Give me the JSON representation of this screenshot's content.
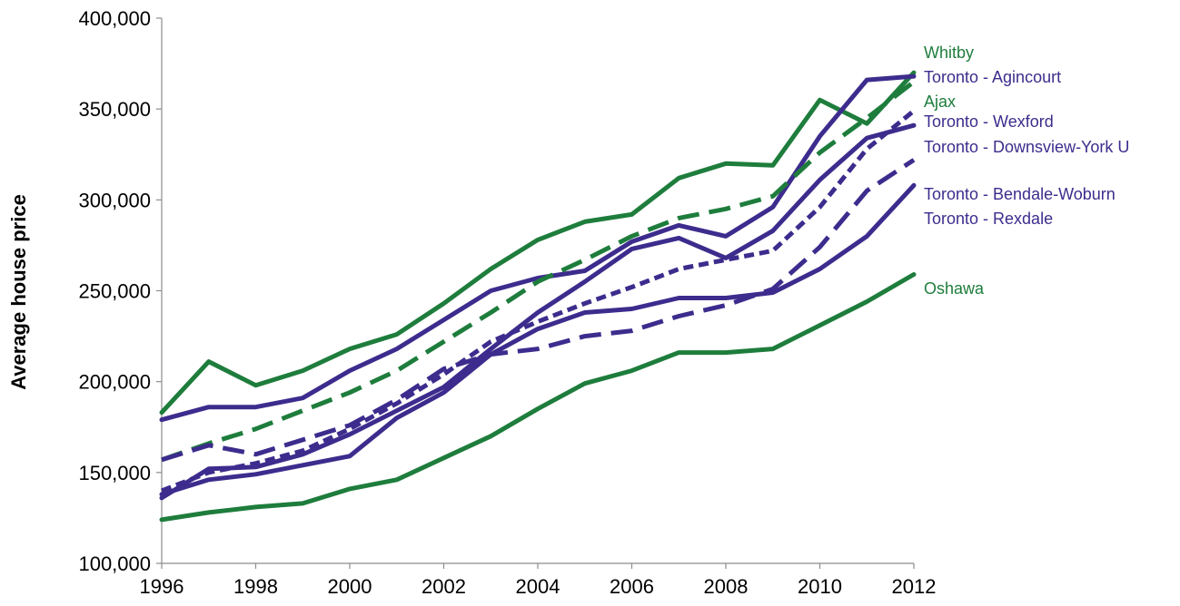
{
  "chart_data": {
    "type": "line",
    "title": "",
    "xlabel": "",
    "ylabel": "Average house price",
    "x": [
      1996,
      1997,
      1998,
      1999,
      2000,
      2001,
      2002,
      2003,
      2004,
      2005,
      2006,
      2007,
      2008,
      2009,
      2010,
      2011,
      2012
    ],
    "xticks": [
      1996,
      1998,
      2000,
      2002,
      2004,
      2006,
      2008,
      2010,
      2012
    ],
    "xtick_labels": [
      "1996",
      "1998",
      "2000",
      "2002",
      "2004",
      "2006",
      "2008",
      "2010",
      "2012"
    ],
    "xlim": [
      1996,
      2012
    ],
    "ylim": [
      100000,
      400000
    ],
    "yticks": [
      100000,
      150000,
      200000,
      250000,
      300000,
      350000,
      400000
    ],
    "ytick_labels": [
      "100,000",
      "150,000",
      "200,000",
      "250,000",
      "300,000",
      "350,000",
      "400,000"
    ],
    "grid": false,
    "legend": "labels at right end of lines",
    "colors": {
      "green": "#1E7D3C",
      "purple": "#3D2C8D"
    },
    "series": [
      {
        "name": "Whitby",
        "color": "#1E7D3C",
        "dash": "solid",
        "values": [
          183000,
          211000,
          198000,
          206000,
          218000,
          226000,
          243000,
          262000,
          278000,
          288000,
          292000,
          312000,
          320000,
          319000,
          355000,
          342000,
          370000
        ]
      },
      {
        "name": "Toronto - Agincourt",
        "color": "#3D2C8D",
        "dash": "solid",
        "values": [
          179000,
          186000,
          186000,
          191000,
          206000,
          218000,
          234000,
          250000,
          257000,
          261000,
          277000,
          286000,
          280000,
          296000,
          335000,
          366000,
          368000
        ]
      },
      {
        "name": "Ajax",
        "color": "#1E7D3C",
        "dash": "dashed",
        "values": [
          157000,
          166000,
          174000,
          184000,
          194000,
          206000,
          222000,
          238000,
          255000,
          267000,
          280000,
          290000,
          295000,
          302000,
          326000,
          345000,
          365000
        ]
      },
      {
        "name": "Toronto - Wexford",
        "color": "#3D2C8D",
        "dash": "dotted",
        "values": [
          140000,
          150000,
          155000,
          162000,
          174000,
          188000,
          204000,
          222000,
          233000,
          243000,
          252000,
          262000,
          267000,
          272000,
          296000,
          328000,
          349000
        ]
      },
      {
        "name": "Toronto - Downsview-York U",
        "color": "#3D2C8D",
        "dash": "solid",
        "values": [
          136000,
          152000,
          153000,
          160000,
          171000,
          184000,
          197000,
          218000,
          238000,
          255000,
          273000,
          279000,
          268000,
          283000,
          311000,
          334000,
          341000
        ]
      },
      {
        "name": "Toronto - Bendale-Woburn",
        "color": "#3D2C8D",
        "dash": "dashed",
        "values": [
          157000,
          165000,
          160000,
          168000,
          176000,
          190000,
          207000,
          215000,
          218000,
          225000,
          228000,
          236000,
          242000,
          251000,
          274000,
          305000,
          322000
        ]
      },
      {
        "name": "Toronto - Rexdale",
        "color": "#3D2C8D",
        "dash": "solid",
        "values": [
          138000,
          146000,
          149000,
          154000,
          159000,
          180000,
          194000,
          215000,
          229000,
          238000,
          240000,
          246000,
          246000,
          249000,
          262000,
          280000,
          308000
        ]
      },
      {
        "name": "Oshawa",
        "color": "#1E7D3C",
        "dash": "solid",
        "values": [
          124000,
          128000,
          131000,
          133000,
          141000,
          146000,
          158000,
          170000,
          185000,
          199000,
          206000,
          216000,
          216000,
          218000,
          231000,
          244000,
          259000
        ]
      }
    ],
    "legend_items": [
      {
        "label": "Whitby",
        "color": "#1E7D3C"
      },
      {
        "label": "Toronto - Agincourt",
        "color": "#3D2C8D"
      },
      {
        "label": "Ajax",
        "color": "#1E7D3C"
      },
      {
        "label": "Toronto - Wexford",
        "color": "#3D2C8D"
      },
      {
        "label": "Toronto - Downsview-York U",
        "color": "#3D2C8D"
      },
      {
        "label": "Toronto - Bendale-Woburn",
        "color": "#3D2C8D"
      },
      {
        "label": "Toronto - Rexdale",
        "color": "#3D2C8D"
      },
      {
        "label": "Oshawa",
        "color": "#1E7D3C"
      }
    ]
  }
}
